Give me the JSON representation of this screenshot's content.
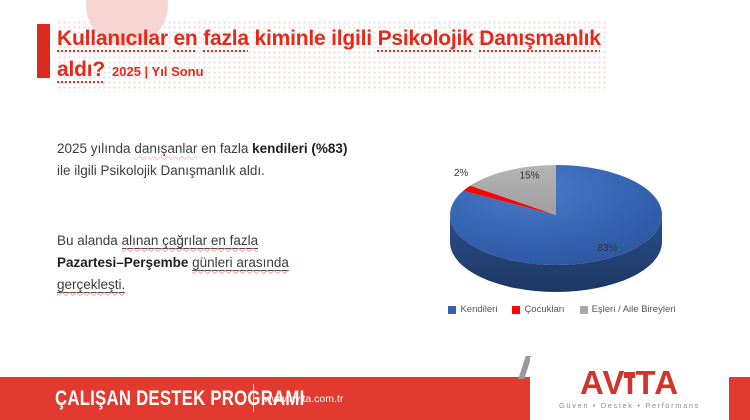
{
  "title": {
    "line1_segments": [
      {
        "t": "Kullanıcılar",
        "u": "dot"
      },
      {
        "t": " "
      },
      {
        "t": "en",
        "u": "dot"
      },
      {
        "t": " "
      },
      {
        "t": "fazla",
        "u": "dot"
      },
      {
        "t": " kiminle ilgili "
      },
      {
        "t": "Psikolojik",
        "u": "dot"
      },
      {
        "t": " "
      },
      {
        "t": "Danışmanlık",
        "u": "dot"
      }
    ],
    "line2_word": "aldı?",
    "line2_suffix": "2025 | Yıl Sonu"
  },
  "body": {
    "p1_segments": [
      {
        "t": "2025 yılında "
      },
      {
        "t": "danışanlar",
        "u": "wavy"
      },
      {
        "t": " en fazla "
      },
      {
        "t": "kendileri (%83)",
        "b": true
      },
      {
        "br": true
      },
      {
        "t": "ile ilgili Psikolojik Danışmanlık aldı."
      }
    ],
    "p2_segments": [
      {
        "t": "Bu alanda "
      },
      {
        "t": "alınan çağrılar en fazla",
        "u": "solid"
      },
      {
        "br": true
      },
      {
        "t": "Pazartesi–Perşembe",
        "b": true
      },
      {
        "t": " "
      },
      {
        "t": "günleri arasında",
        "u": "solid"
      },
      {
        "br": true
      },
      {
        "t": "gerçekleşti.",
        "u": "solid"
      }
    ]
  },
  "chart_data": {
    "type": "pie",
    "style": "3d",
    "labels": [
      "Kendileri",
      "Çocukları",
      "Eşleri / Aile Bireyleri"
    ],
    "values": [
      83,
      2,
      15
    ],
    "value_labels": [
      "83%",
      "2%",
      "15%"
    ],
    "colors": [
      "#3463AF",
      "#FF0303",
      "#A9A9A9"
    ],
    "start_angle_deg": 0,
    "direction": "clockwise",
    "legend_position": "bottom"
  },
  "footer": {
    "program": "ÇALIŞAN DESTEK PROGRAMI",
    "website": "www.avita.com.tr",
    "logo_parts": [
      "AV",
      "ı",
      "TA"
    ],
    "tagline": "Güven • Destek • Performans"
  },
  "colors": {
    "title_red": "#E6281B",
    "accent_bar_red": "#DC2A1E",
    "footer_red": "#E23A2E",
    "logo_red": "#D2342B",
    "circle_pink": "#F7D5D2"
  }
}
